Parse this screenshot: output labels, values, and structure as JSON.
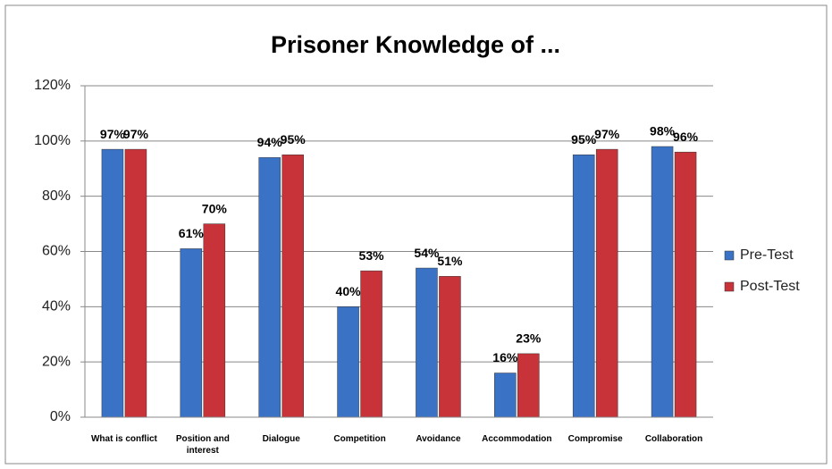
{
  "chart_data": {
    "type": "bar",
    "title": "Prisoner Knowledge of ...",
    "categories": [
      "What is conflict",
      "Position and interest",
      "Dialogue",
      "Competition",
      "Avoidance",
      "Accommodation",
      "Compromise",
      "Collaboration"
    ],
    "series": [
      {
        "name": "Pre-Test",
        "color": "#3a72c6",
        "values": [
          97,
          61,
          94,
          40,
          54,
          16,
          95,
          98
        ],
        "value_labels": [
          "97%",
          "61%",
          "94%",
          "40%",
          "54%",
          "16%",
          "95%",
          "98%"
        ]
      },
      {
        "name": "Post-Test",
        "color": "#c8333a",
        "values": [
          97,
          70,
          95,
          53,
          51,
          23,
          97,
          96
        ],
        "value_labels": [
          "97%",
          "70%",
          "95%",
          "53%",
          "51%",
          "23%",
          "97%",
          "96%"
        ]
      }
    ],
    "ylim": [
      0,
      120
    ],
    "yticks": [
      {
        "value": 0,
        "label": "0%"
      },
      {
        "value": 20,
        "label": "20%"
      },
      {
        "value": 40,
        "label": "40%"
      },
      {
        "value": 60,
        "label": "60%"
      },
      {
        "value": 80,
        "label": "80%"
      },
      {
        "value": 100,
        "label": "100%"
      },
      {
        "value": 120,
        "label": "120%"
      }
    ],
    "grid": true,
    "legend": "right"
  }
}
